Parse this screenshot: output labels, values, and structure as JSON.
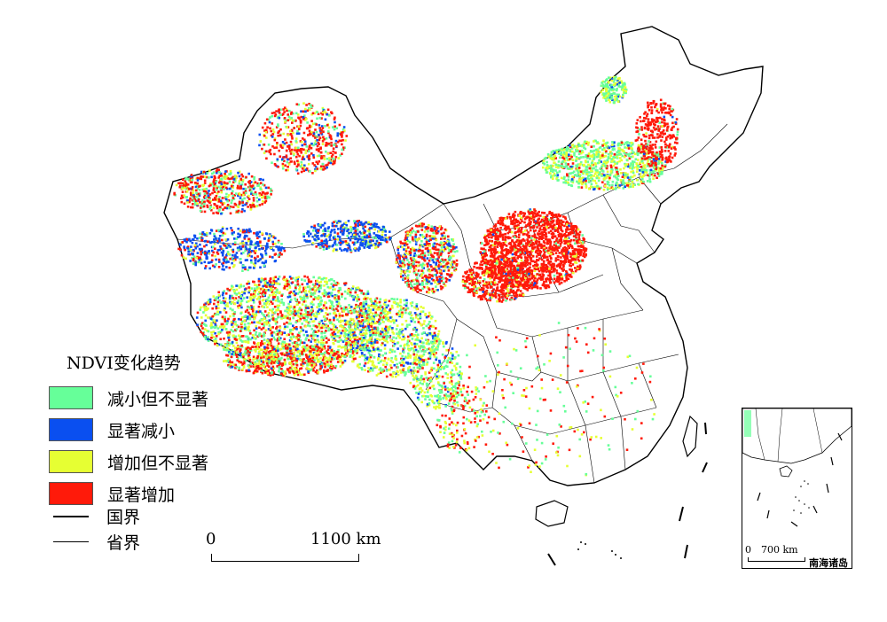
{
  "legend": {
    "title": "NDVI变化趋势",
    "items": [
      {
        "label": "减小但不显著",
        "color": "#66ff99"
      },
      {
        "label": "显著减小",
        "color": "#0a4ff0"
      },
      {
        "label": "增加但不显著",
        "color": "#e6ff33"
      },
      {
        "label": "显著增加",
        "color": "#ff1a0a"
      }
    ]
  },
  "boundaries": {
    "national": "国界",
    "provincial": "省界"
  },
  "scale": {
    "zero": "0",
    "max": "1100 km"
  },
  "inset": {
    "name": "南海诸岛",
    "scale_zero": "0",
    "scale_max": "700 km"
  }
}
